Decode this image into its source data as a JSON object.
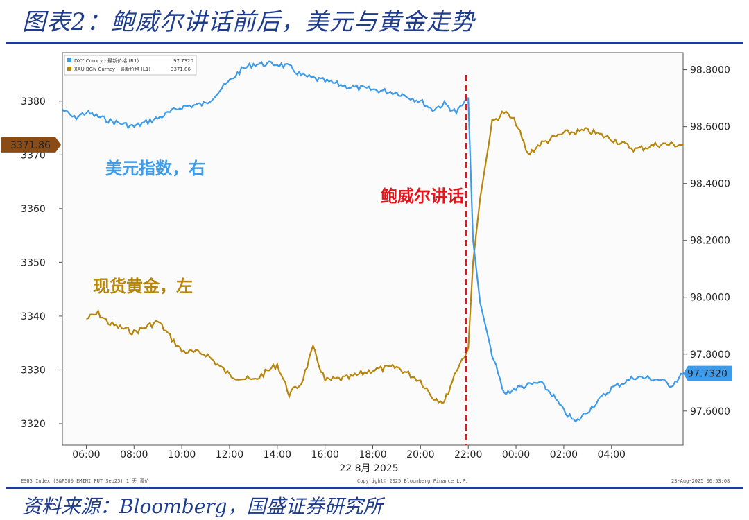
{
  "page": {
    "title": "图表2：鲍威尔讲话前后，美元与黄金走势",
    "source": "资料来源：Bloomberg，国盛证券研究所"
  },
  "chart_data": {
    "type": "line",
    "legend": [
      {
        "label": "DXY Curncy - 最新价格 (R1)",
        "value": "97.7320",
        "color": "#3d9be9"
      },
      {
        "label": "XAU BGN Curncy - 最新价格 (L1)",
        "value": "3371.86",
        "color": "#b8860b"
      }
    ],
    "left_axis": {
      "ticks": [
        3320,
        3330,
        3340,
        3350,
        3360,
        3370,
        3380
      ],
      "range": [
        3316,
        3389
      ],
      "current_label": "3371.86"
    },
    "right_axis": {
      "ticks": [
        "98.8000",
        "98.6000",
        "98.4000",
        "98.2000",
        "98.0000",
        "97.8000",
        "97.6000"
      ],
      "range": [
        97.48,
        98.86
      ],
      "current_label": "97.7320"
    },
    "x_axis": {
      "tick_labels": [
        "06:00",
        "08:00",
        "10:00",
        "12:00",
        "14:00",
        "16:00",
        "18:00",
        "20:00",
        "22:00",
        "00:00",
        "02:00",
        "04:00"
      ],
      "date_label": "22 8月 2025",
      "range_hours": [
        5,
        31
      ]
    },
    "event": {
      "label": "鲍威尔讲话",
      "hour": 22.0,
      "color": "#e8141c"
    },
    "annotations": {
      "dxy_label": "美元指数，右",
      "gold_label": "现货黄金，左"
    },
    "series": [
      {
        "name": "DXY Curncy",
        "axis": "right",
        "color": "#3d9be9",
        "points": [
          [
            5.0,
            98.66
          ],
          [
            5.5,
            98.63
          ],
          [
            6.0,
            98.65
          ],
          [
            7.0,
            98.62
          ],
          [
            8.0,
            98.6
          ],
          [
            9.0,
            98.63
          ],
          [
            10.0,
            98.67
          ],
          [
            11.0,
            98.68
          ],
          [
            12.0,
            98.76
          ],
          [
            12.5,
            98.8
          ],
          [
            13.0,
            98.82
          ],
          [
            14.0,
            98.82
          ],
          [
            14.5,
            98.81
          ],
          [
            15.0,
            98.78
          ],
          [
            16.0,
            98.76
          ],
          [
            17.0,
            98.74
          ],
          [
            18.0,
            98.73
          ],
          [
            19.0,
            98.72
          ],
          [
            20.0,
            98.69
          ],
          [
            20.5,
            98.66
          ],
          [
            21.0,
            98.68
          ],
          [
            21.5,
            98.65
          ],
          [
            22.0,
            98.7
          ],
          [
            22.2,
            98.2
          ],
          [
            22.5,
            97.98
          ],
          [
            23.0,
            97.8
          ],
          [
            23.5,
            97.66
          ],
          [
            24.0,
            97.68
          ],
          [
            25.0,
            97.7
          ],
          [
            25.5,
            97.66
          ],
          [
            26.0,
            97.6
          ],
          [
            26.5,
            97.56
          ],
          [
            27.0,
            97.6
          ],
          [
            28.0,
            97.68
          ],
          [
            29.0,
            97.72
          ],
          [
            30.0,
            97.71
          ],
          [
            30.5,
            97.69
          ],
          [
            31.0,
            97.73
          ]
        ]
      },
      {
        "name": "XAU BGN Curncy",
        "axis": "left",
        "color": "#b8860b",
        "points": [
          [
            6.0,
            3339.5
          ],
          [
            6.5,
            3340.5
          ],
          [
            7.0,
            3338.5
          ],
          [
            8.0,
            3337
          ],
          [
            9.0,
            3339
          ],
          [
            10.0,
            3333.5
          ],
          [
            11.0,
            3333
          ],
          [
            12.0,
            3329
          ],
          [
            13.0,
            3328
          ],
          [
            14.0,
            3331
          ],
          [
            14.5,
            3325.5
          ],
          [
            15.0,
            3327.5
          ],
          [
            15.5,
            3334
          ],
          [
            16.0,
            3328
          ],
          [
            17.0,
            3328.5
          ],
          [
            18.0,
            3330
          ],
          [
            19.0,
            3330.5
          ],
          [
            20.0,
            3328
          ],
          [
            20.5,
            3325
          ],
          [
            21.0,
            3324
          ],
          [
            21.5,
            3330
          ],
          [
            22.0,
            3334
          ],
          [
            22.2,
            3350
          ],
          [
            22.5,
            3362
          ],
          [
            23.0,
            3376
          ],
          [
            23.5,
            3378
          ],
          [
            24.0,
            3376
          ],
          [
            24.5,
            3370
          ],
          [
            25.0,
            3372
          ],
          [
            26.0,
            3374
          ],
          [
            27.0,
            3374.5
          ],
          [
            28.0,
            3373
          ],
          [
            29.0,
            3371
          ],
          [
            30.0,
            3372
          ],
          [
            31.0,
            3371.86
          ]
        ]
      }
    ]
  }
}
